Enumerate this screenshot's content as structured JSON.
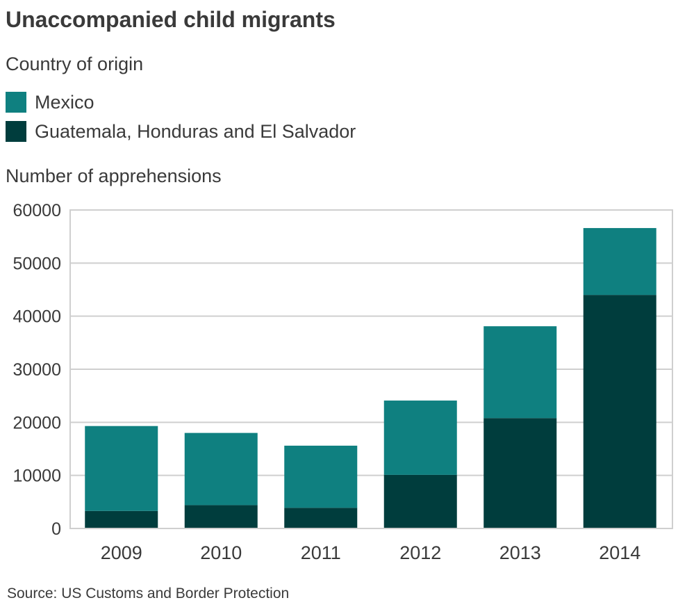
{
  "chart_data": {
    "type": "bar",
    "stacked": true,
    "title": "Unaccompanied child migrants",
    "subtitle": "Country of origin",
    "ylabel": "Number of apprehensions",
    "xlabel": "",
    "categories": [
      "2009",
      "2010",
      "2011",
      "2012",
      "2013",
      "2014"
    ],
    "series": [
      {
        "name": "Guatemala, Honduras and El Salvador",
        "color": "#003d3d",
        "values": [
          3300,
          4400,
          3900,
          10100,
          20800,
          44000
        ]
      },
      {
        "name": "Mexico",
        "color": "#0f8080",
        "values": [
          16000,
          13600,
          11700,
          14000,
          17300,
          12600
        ]
      }
    ],
    "legend_order": [
      "Mexico",
      "Guatemala, Honduras and El Salvador"
    ],
    "legend_position": "top-left",
    "ylim": [
      0,
      60000
    ],
    "yticks": [
      "0",
      "10000",
      "20000",
      "30000",
      "40000",
      "50000",
      "60000"
    ],
    "grid": true,
    "source": "Source: US Customs and Border Protection"
  }
}
